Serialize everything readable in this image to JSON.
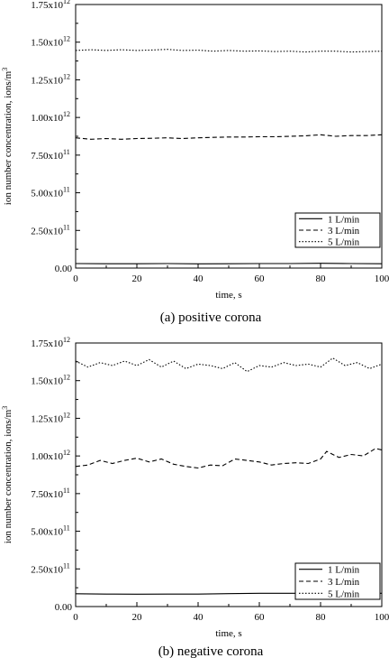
{
  "charts": [
    {
      "type": "line",
      "caption": "(a) positive corona",
      "xlabel": "time, s",
      "ylabel": "ion number concentration, ions/m",
      "ylabel_sup": "3",
      "xlim": [
        0,
        100
      ],
      "ylim": [
        0,
        1750000000000.0
      ],
      "x_ticks": [
        "0",
        "20",
        "40",
        "60",
        "80",
        "100"
      ],
      "y_ticks": [
        {
          "mant": "0.00",
          "exp": ""
        },
        {
          "mant": "2.50x10",
          "exp": "11"
        },
        {
          "mant": "5.00x10",
          "exp": "11"
        },
        {
          "mant": "7.50x10",
          "exp": "11"
        },
        {
          "mant": "1.00x10",
          "exp": "12"
        },
        {
          "mant": "1.25x10",
          "exp": "12"
        },
        {
          "mant": "1.50x10",
          "exp": "12"
        },
        {
          "mant": "1.75x10",
          "exp": "12"
        }
      ],
      "legend_position": "bottom-right",
      "series": [
        {
          "name": "1 L/min",
          "style": "solid",
          "x": [
            0,
            10,
            20,
            30,
            40,
            50,
            60,
            70,
            80,
            90,
            100
          ],
          "y": [
            30000000000.0,
            29000000000.0,
            29000000000.0,
            30000000000.0,
            28000000000.0,
            29000000000.0,
            30000000000.0,
            30000000000.0,
            32000000000.0,
            30000000000.0,
            29000000000.0
          ]
        },
        {
          "name": "3 L/min",
          "style": "dashed",
          "x": [
            0,
            5,
            10,
            15,
            20,
            25,
            30,
            35,
            40,
            45,
            50,
            55,
            60,
            65,
            70,
            75,
            80,
            85,
            90,
            95,
            100
          ],
          "y": [
            865000000000.0,
            855000000000.0,
            860000000000.0,
            855000000000.0,
            860000000000.0,
            862000000000.0,
            865000000000.0,
            860000000000.0,
            865000000000.0,
            868000000000.0,
            870000000000.0,
            870000000000.0,
            872000000000.0,
            872000000000.0,
            875000000000.0,
            878000000000.0,
            885000000000.0,
            875000000000.0,
            880000000000.0,
            880000000000.0,
            885000000000.0
          ]
        },
        {
          "name": "5 L/min",
          "style": "dotted",
          "x": [
            0,
            5,
            10,
            15,
            20,
            25,
            30,
            35,
            40,
            45,
            50,
            55,
            60,
            65,
            70,
            75,
            80,
            85,
            90,
            95,
            100
          ],
          "y": [
            1445000000000.0,
            1450000000000.0,
            1445000000000.0,
            1450000000000.0,
            1445000000000.0,
            1448000000000.0,
            1452000000000.0,
            1445000000000.0,
            1447000000000.0,
            1440000000000.0,
            1445000000000.0,
            1440000000000.0,
            1442000000000.0,
            1438000000000.0,
            1440000000000.0,
            1435000000000.0,
            1440000000000.0,
            1440000000000.0,
            1435000000000.0,
            1438000000000.0,
            1440000000000.0
          ]
        }
      ]
    },
    {
      "type": "line",
      "caption": "(b) negative corona",
      "xlabel": "time, s",
      "ylabel": "ion number concentration, ions/m",
      "ylabel_sup": "3",
      "xlim": [
        0,
        100
      ],
      "ylim": [
        0,
        1750000000000.0
      ],
      "x_ticks": [
        "0",
        "20",
        "40",
        "60",
        "80",
        "100"
      ],
      "y_ticks": [
        {
          "mant": "0.00",
          "exp": ""
        },
        {
          "mant": "2.50x10",
          "exp": "11"
        },
        {
          "mant": "5.00x10",
          "exp": "11"
        },
        {
          "mant": "7.50x10",
          "exp": "11"
        },
        {
          "mant": "1.00x10",
          "exp": "12"
        },
        {
          "mant": "1.25x10",
          "exp": "12"
        },
        {
          "mant": "1.50x10",
          "exp": "12"
        },
        {
          "mant": "1.75x10",
          "exp": "12"
        }
      ],
      "legend_position": "bottom-right",
      "series": [
        {
          "name": "1 L/min",
          "style": "solid",
          "x": [
            0,
            10,
            20,
            30,
            40,
            50,
            60,
            70,
            80,
            90,
            100
          ],
          "y": [
            85000000000.0,
            83000000000.0,
            82000000000.0,
            83000000000.0,
            83000000000.0,
            86000000000.0,
            88000000000.0,
            88000000000.0,
            88000000000.0,
            88000000000.0,
            88000000000.0
          ]
        },
        {
          "name": "3 L/min",
          "style": "dashed",
          "x": [
            0,
            4,
            8,
            12,
            16,
            20,
            24,
            28,
            32,
            36,
            40,
            44,
            48,
            52,
            56,
            60,
            64,
            68,
            72,
            76,
            80,
            82,
            86,
            90,
            94,
            98,
            100
          ],
          "y": [
            930000000000.0,
            940000000000.0,
            970000000000.0,
            950000000000.0,
            970000000000.0,
            985000000000.0,
            960000000000.0,
            980000000000.0,
            945000000000.0,
            930000000000.0,
            920000000000.0,
            940000000000.0,
            935000000000.0,
            980000000000.0,
            970000000000.0,
            960000000000.0,
            940000000000.0,
            950000000000.0,
            955000000000.0,
            950000000000.0,
            980000000000.0,
            1030000000000.0,
            990000000000.0,
            1010000000000.0,
            1000000000000.0,
            1050000000000.0,
            1040000000000.0
          ]
        },
        {
          "name": "5 L/min",
          "style": "dotted",
          "x": [
            0,
            4,
            8,
            12,
            16,
            20,
            24,
            28,
            32,
            36,
            40,
            44,
            48,
            52,
            56,
            60,
            64,
            68,
            72,
            76,
            80,
            84,
            88,
            92,
            96,
            100
          ],
          "y": [
            1630000000000.0,
            1590000000000.0,
            1620000000000.0,
            1600000000000.0,
            1630000000000.0,
            1600000000000.0,
            1640000000000.0,
            1590000000000.0,
            1630000000000.0,
            1580000000000.0,
            1610000000000.0,
            1600000000000.0,
            1580000000000.0,
            1620000000000.0,
            1560000000000.0,
            1600000000000.0,
            1590000000000.0,
            1620000000000.0,
            1600000000000.0,
            1610000000000.0,
            1590000000000.0,
            1650000000000.0,
            1600000000000.0,
            1620000000000.0,
            1580000000000.0,
            1610000000000.0
          ]
        }
      ]
    }
  ]
}
